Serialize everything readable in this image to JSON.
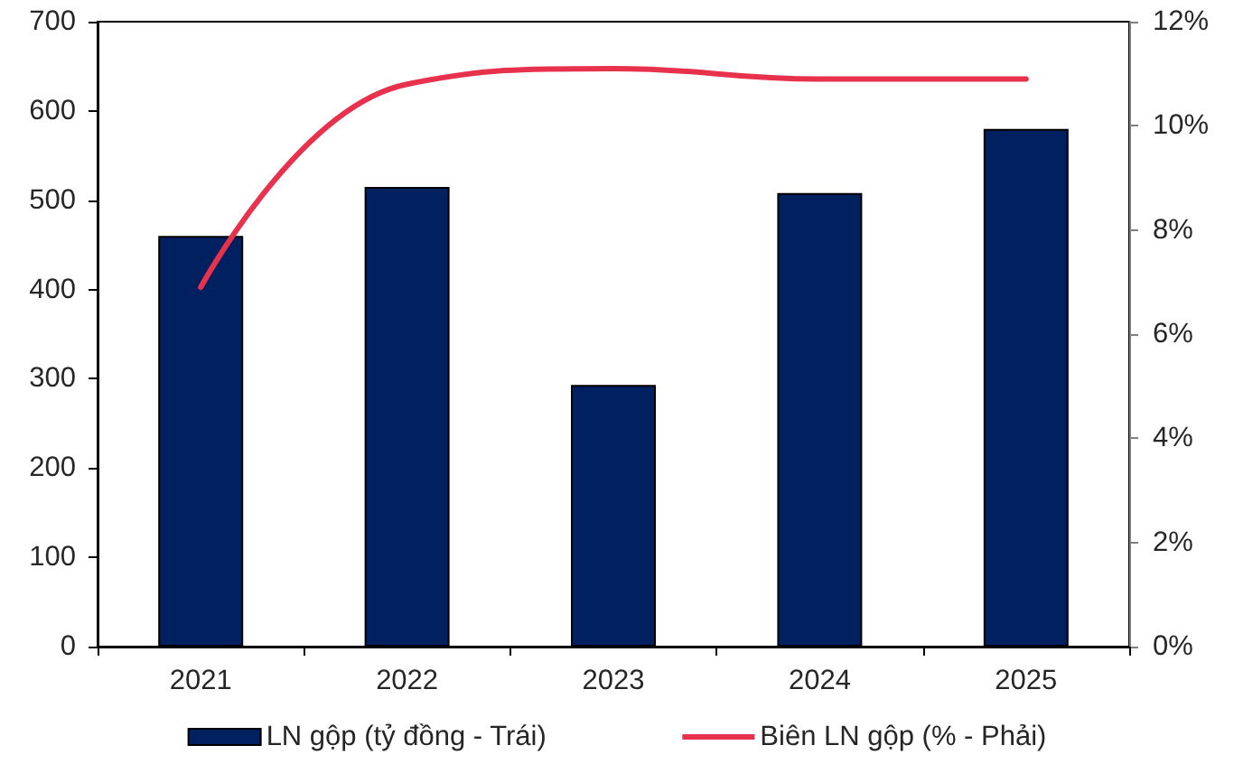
{
  "chart_data": {
    "type": "bar",
    "categories": [
      "2021",
      "2022",
      "2023",
      "2024",
      "2025"
    ],
    "series": [
      {
        "name": "LN gộp (tỷ đồng - Trái)",
        "color": "#002060",
        "values": [
          460,
          515,
          293,
          508,
          580
        ]
      },
      {
        "name": "Biên LN gộp (% - Phải)",
        "type": "line",
        "axis": "y2",
        "color": "#e8314c",
        "values": [
          6.9,
          10.8,
          11.1,
          10.9,
          10.9
        ]
      }
    ],
    "ylim": [
      0,
      700
    ],
    "yticks": [
      0,
      100,
      200,
      300,
      400,
      500,
      600,
      700
    ],
    "y2lim": [
      0,
      12
    ],
    "y2ticks": [
      {
        "value": 0,
        "label": "0%"
      },
      {
        "value": 2,
        "label": "2%"
      },
      {
        "value": 4,
        "label": "4%"
      },
      {
        "value": 6,
        "label": "6%"
      },
      {
        "value": 8,
        "label": "8%"
      },
      {
        "value": 10,
        "label": "10%"
      },
      {
        "value": 12,
        "label": "12%"
      }
    ],
    "legend": "bottom",
    "marker": "none",
    "line_style": "solid"
  }
}
